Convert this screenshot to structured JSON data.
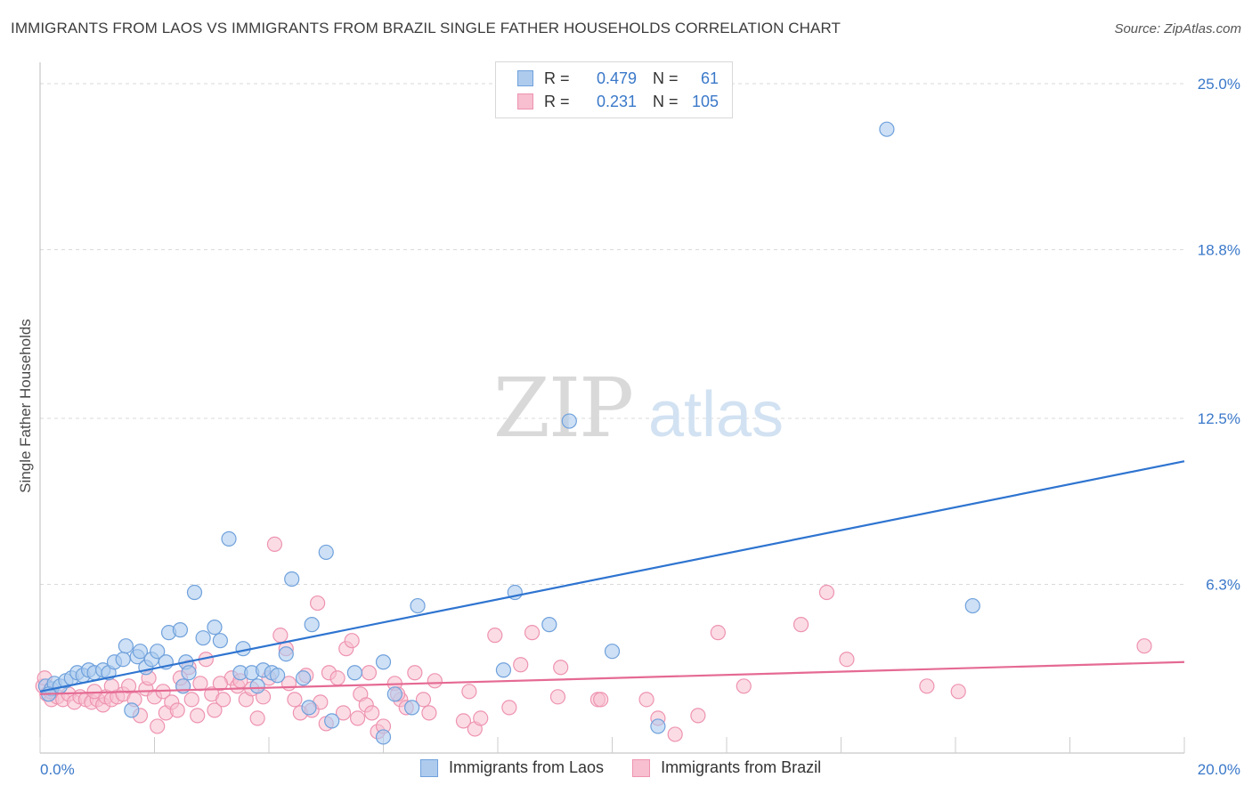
{
  "title": "IMMIGRANTS FROM LAOS VS IMMIGRANTS FROM BRAZIL SINGLE FATHER HOUSEHOLDS CORRELATION CHART",
  "source": "Source: ZipAtlas.com",
  "watermark": {
    "zip": "ZIP",
    "atlas": "atlas"
  },
  "legend": {
    "rows": [
      {
        "r_label": "R =",
        "r_value": "0.479",
        "n_label": "N =",
        "n_value": "61",
        "color": "#5b9bd5"
      },
      {
        "r_label": "R =",
        "r_value": "0.231",
        "n_label": "N =",
        "n_value": "105",
        "color": "#f08aab"
      }
    ]
  },
  "bottom_legend": {
    "laos": "Immigrants from Laos",
    "brazil": "Immigrants from Brazil"
  },
  "colors": {
    "laos_fill": "#aecbee",
    "laos_stroke": "#6fa1dc",
    "laos_line": "#2e74d0",
    "brazil_fill": "#f7bfd0",
    "brazil_stroke": "#ee93b0",
    "brazil_line": "#e56a93",
    "tick": "#3a78c9",
    "grid": "#dadada"
  },
  "chart_data": {
    "type": "scatter",
    "title": "IMMIGRANTS FROM LAOS VS IMMIGRANTS FROM BRAZIL SINGLE FATHER HOUSEHOLDS CORRELATION CHART",
    "xlabel": "",
    "ylabel": "Single Father Households",
    "xlim": [
      0,
      20
    ],
    "ylim": [
      0,
      25.8
    ],
    "x_tick_labels": [
      "0.0%",
      "20.0%"
    ],
    "y_ticks": [
      6.3,
      12.5,
      18.8,
      25.0
    ],
    "y_tick_labels": [
      "6.3%",
      "12.5%",
      "18.8%",
      "25.0%"
    ],
    "series": [
      {
        "name": "Immigrants from Laos",
        "r": 0.479,
        "n": 61,
        "trend": {
          "x": [
            0,
            20
          ],
          "y": [
            2.3,
            10.9
          ]
        },
        "points": [
          [
            0.1,
            2.5
          ],
          [
            0.2,
            2.4
          ],
          [
            0.25,
            2.6
          ],
          [
            0.35,
            2.5
          ],
          [
            0.45,
            2.7
          ],
          [
            0.55,
            2.8
          ],
          [
            0.65,
            3.0
          ],
          [
            0.75,
            2.9
          ],
          [
            0.85,
            3.1
          ],
          [
            0.95,
            3.0
          ],
          [
            1.1,
            3.1
          ],
          [
            1.2,
            3.0
          ],
          [
            1.3,
            3.4
          ],
          [
            1.45,
            3.5
          ],
          [
            1.5,
            4.0
          ],
          [
            1.7,
            3.6
          ],
          [
            1.75,
            3.8
          ],
          [
            1.85,
            3.2
          ],
          [
            1.95,
            3.5
          ],
          [
            2.05,
            3.8
          ],
          [
            2.2,
            3.4
          ],
          [
            2.25,
            4.5
          ],
          [
            2.45,
            4.6
          ],
          [
            2.55,
            3.4
          ],
          [
            2.6,
            3.0
          ],
          [
            2.7,
            6.0
          ],
          [
            2.85,
            4.3
          ],
          [
            3.05,
            4.7
          ],
          [
            3.15,
            4.2
          ],
          [
            3.3,
            8.0
          ],
          [
            3.5,
            3.0
          ],
          [
            3.55,
            3.9
          ],
          [
            3.7,
            3.0
          ],
          [
            3.8,
            2.5
          ],
          [
            3.9,
            3.1
          ],
          [
            4.05,
            3.0
          ],
          [
            4.15,
            2.9
          ],
          [
            4.3,
            3.7
          ],
          [
            4.4,
            6.5
          ],
          [
            4.6,
            2.8
          ],
          [
            4.7,
            1.7
          ],
          [
            4.75,
            4.8
          ],
          [
            5.0,
            7.5
          ],
          [
            5.1,
            1.2
          ],
          [
            5.5,
            3.0
          ],
          [
            6.0,
            3.4
          ],
          [
            6.2,
            2.2
          ],
          [
            6.0,
            0.6
          ],
          [
            6.5,
            1.7
          ],
          [
            6.6,
            5.5
          ],
          [
            8.1,
            3.1
          ],
          [
            8.3,
            6.0
          ],
          [
            8.9,
            4.8
          ],
          [
            10.0,
            3.8
          ],
          [
            10.8,
            1.0
          ],
          [
            14.8,
            23.3
          ],
          [
            9.25,
            12.4
          ],
          [
            16.3,
            5.5
          ],
          [
            0.15,
            2.2
          ],
          [
            1.6,
            1.6
          ],
          [
            2.5,
            2.5
          ]
        ]
      },
      {
        "name": "Immigrants from Brazil",
        "r": 0.231,
        "n": 105,
        "trend": {
          "x": [
            0,
            20
          ],
          "y": [
            2.2,
            3.4
          ]
        },
        "points": [
          [
            0.05,
            2.5
          ],
          [
            0.12,
            2.2
          ],
          [
            0.2,
            2.0
          ],
          [
            0.3,
            2.1
          ],
          [
            0.4,
            2.0
          ],
          [
            0.5,
            2.2
          ],
          [
            0.6,
            1.9
          ],
          [
            0.7,
            2.1
          ],
          [
            0.8,
            2.0
          ],
          [
            0.9,
            1.9
          ],
          [
            1.0,
            2.0
          ],
          [
            1.1,
            1.8
          ],
          [
            1.15,
            2.1
          ],
          [
            1.25,
            2.0
          ],
          [
            1.35,
            2.1
          ],
          [
            1.45,
            2.2
          ],
          [
            1.55,
            2.5
          ],
          [
            1.65,
            2.0
          ],
          [
            1.75,
            1.4
          ],
          [
            1.85,
            2.4
          ],
          [
            1.9,
            2.8
          ],
          [
            2.0,
            2.1
          ],
          [
            2.05,
            1.0
          ],
          [
            2.15,
            2.3
          ],
          [
            2.2,
            1.5
          ],
          [
            2.3,
            1.9
          ],
          [
            2.4,
            1.6
          ],
          [
            2.5,
            2.5
          ],
          [
            2.6,
            3.2
          ],
          [
            2.65,
            2.0
          ],
          [
            2.75,
            1.4
          ],
          [
            2.8,
            2.6
          ],
          [
            2.9,
            3.5
          ],
          [
            3.0,
            2.2
          ],
          [
            3.05,
            1.6
          ],
          [
            3.2,
            2.0
          ],
          [
            3.35,
            2.8
          ],
          [
            3.45,
            2.5
          ],
          [
            3.5,
            2.7
          ],
          [
            3.6,
            2.0
          ],
          [
            3.7,
            2.4
          ],
          [
            3.8,
            1.3
          ],
          [
            3.9,
            2.1
          ],
          [
            4.0,
            2.8
          ],
          [
            4.1,
            7.8
          ],
          [
            4.2,
            4.4
          ],
          [
            4.3,
            3.9
          ],
          [
            4.35,
            2.6
          ],
          [
            4.45,
            2.0
          ],
          [
            4.55,
            1.5
          ],
          [
            4.65,
            2.9
          ],
          [
            4.75,
            1.6
          ],
          [
            4.85,
            5.6
          ],
          [
            4.9,
            1.9
          ],
          [
            5.0,
            1.1
          ],
          [
            5.05,
            3.0
          ],
          [
            5.2,
            2.8
          ],
          [
            5.3,
            1.5
          ],
          [
            5.35,
            3.9
          ],
          [
            5.45,
            4.2
          ],
          [
            5.55,
            1.3
          ],
          [
            5.6,
            2.2
          ],
          [
            5.7,
            1.8
          ],
          [
            5.8,
            1.5
          ],
          [
            5.9,
            0.8
          ],
          [
            6.0,
            1.0
          ],
          [
            6.2,
            2.6
          ],
          [
            6.3,
            2.0
          ],
          [
            6.4,
            1.7
          ],
          [
            6.55,
            3.0
          ],
          [
            6.7,
            2.0
          ],
          [
            6.8,
            1.5
          ],
          [
            6.9,
            2.7
          ],
          [
            7.4,
            1.2
          ],
          [
            7.5,
            2.3
          ],
          [
            7.6,
            0.9
          ],
          [
            7.7,
            1.3
          ],
          [
            7.95,
            4.4
          ],
          [
            8.2,
            1.7
          ],
          [
            8.4,
            3.3
          ],
          [
            8.6,
            4.5
          ],
          [
            9.1,
            3.2
          ],
          [
            9.75,
            2.0
          ],
          [
            9.8,
            2.0
          ],
          [
            10.6,
            2.0
          ],
          [
            10.8,
            1.3
          ],
          [
            11.1,
            0.7
          ],
          [
            11.5,
            1.4
          ],
          [
            11.85,
            4.5
          ],
          [
            12.3,
            2.5
          ],
          [
            13.3,
            4.8
          ],
          [
            13.75,
            6.0
          ],
          [
            14.1,
            3.5
          ],
          [
            15.5,
            2.5
          ],
          [
            16.05,
            2.3
          ],
          [
            19.3,
            4.0
          ],
          [
            0.08,
            2.8
          ],
          [
            0.18,
            2.3
          ],
          [
            0.95,
            2.3
          ],
          [
            1.25,
            2.5
          ],
          [
            2.45,
            2.8
          ],
          [
            3.15,
            2.6
          ],
          [
            5.75,
            3.0
          ],
          [
            6.25,
            2.2
          ],
          [
            9.05,
            2.1
          ]
        ]
      }
    ]
  }
}
